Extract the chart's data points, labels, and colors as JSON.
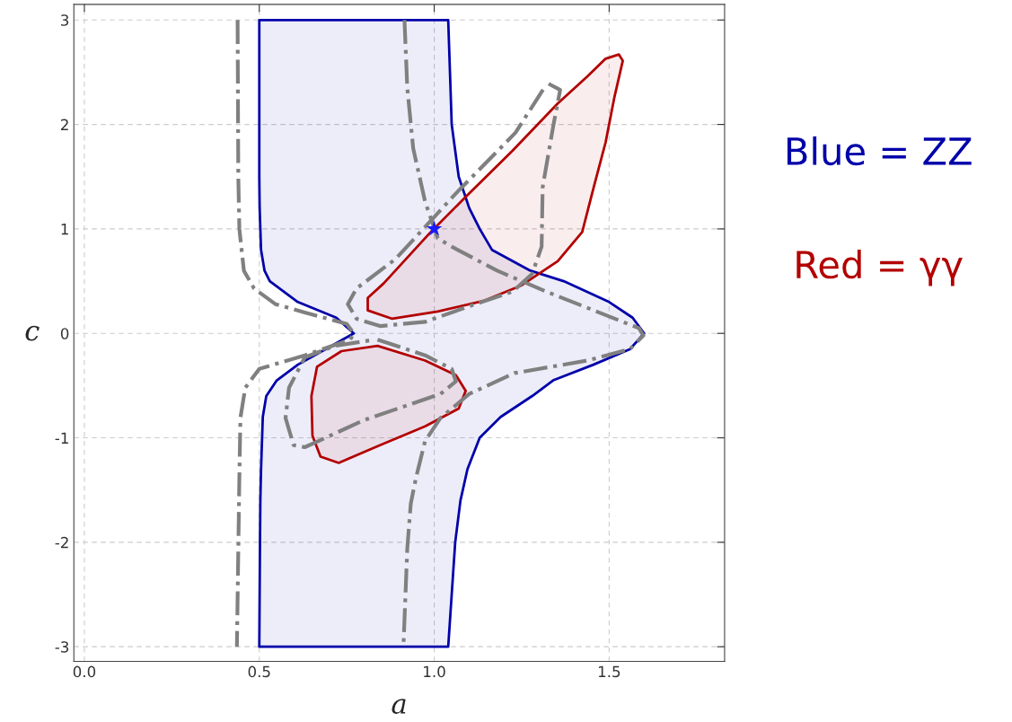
{
  "chart_data": {
    "type": "line",
    "xlabel": "a",
    "ylabel": "c",
    "xlim": [
      -0.03,
      1.83
    ],
    "ylim": [
      -3.14,
      3.15
    ],
    "xticks": [
      {
        "value": 0,
        "label": "0.0"
      },
      {
        "value": 0.5,
        "label": "0.5"
      },
      {
        "value": 1,
        "label": "1.0"
      },
      {
        "value": 1.5,
        "label": "1.5"
      }
    ],
    "yticks": [
      -3,
      -2,
      -1,
      0,
      1,
      2,
      3
    ],
    "grid": true,
    "annotations": [
      "Blue = ZZ",
      "Red = γγ"
    ],
    "series": [
      {
        "type": "area",
        "color": "#0000aa",
        "x": [
          0.5,
          0.5,
          0.5,
          0.501,
          0.503,
          0.505,
          0.515,
          0.53,
          0.61,
          0.72,
          0.77,
          0.69,
          0.61,
          0.55,
          0.52,
          0.51,
          0.508,
          0.505,
          0.503,
          0.502,
          0.5,
          1.04,
          1.06,
          1.075,
          1.095,
          1.13,
          1.19,
          1.28,
          1.34,
          1.455,
          1.56,
          1.6,
          1.567,
          1.5,
          1.37,
          1.275,
          1.165,
          1.13,
          1.1,
          1.07,
          1.05,
          1.04
        ],
        "values": [
          3,
          2,
          1.5,
          1.2,
          1,
          0.8,
          0.6,
          0.5,
          0.3,
          0.15,
          0,
          -0.15,
          -0.3,
          -0.45,
          -0.6,
          -0.8,
          -1,
          -1.3,
          -1.6,
          -2,
          -3,
          -3,
          -2,
          -1.6,
          -1.3,
          -1,
          -0.8,
          -0.6,
          -0.45,
          -0.3,
          -0.15,
          0,
          0.15,
          0.3,
          0.5,
          0.6,
          0.8,
          1,
          1.2,
          1.5,
          2,
          3
        ]
      },
      {
        "type": "area",
        "color": "#b30000",
        "x": [
          1.528,
          1.539,
          1.515,
          1.49,
          1.456,
          1.423,
          1.353,
          1.25,
          1.14,
          1.01,
          0.88,
          0.81,
          0.81,
          0.856,
          0.99,
          1.088,
          1.224,
          1.353,
          1.438,
          1.49
        ],
        "values": [
          2.67,
          2.61,
          2.26,
          1.83,
          1.4,
          0.97,
          0.69,
          0.46,
          0.31,
          0.21,
          0.14,
          0.22,
          0.34,
          0.48,
          0.97,
          1.3,
          1.75,
          2.2,
          2.46,
          2.63
        ]
      },
      {
        "type": "area",
        "color": "#b30000",
        "x": [
          0.838,
          0.974,
          1.062,
          1.09,
          1.07,
          0.974,
          0.845,
          0.727,
          0.675,
          0.652,
          0.649,
          0.665,
          0.735
        ],
        "values": [
          -0.12,
          -0.26,
          -0.4,
          -0.55,
          -0.72,
          -0.89,
          -1.07,
          -1.24,
          -1.18,
          -0.98,
          -0.6,
          -0.32,
          -0.17
        ]
      },
      {
        "color": "#808080",
        "line_style": "dashdot",
        "x": [
          0.438,
          0.44,
          0.443,
          0.456,
          0.485,
          0.546,
          0.63,
          0.75,
          0.77,
          0.76,
          0.63,
          0.5,
          0.46,
          0.446,
          0.443,
          0.436
        ],
        "values": [
          3,
          1.5,
          1,
          0.6,
          0.43,
          0.28,
          0.2,
          0.09,
          0,
          -0.06,
          -0.21,
          -0.34,
          -0.52,
          -0.81,
          -1.38,
          -3
        ]
      },
      {
        "color": "#808080",
        "line_style": "dashdot",
        "x": [
          0.915,
          0.923,
          0.94,
          0.974,
          1.01,
          1.05,
          1.18,
          1.32,
          1.456,
          1.585,
          1.598,
          1.56,
          1.438,
          1.23,
          1.1,
          1.018,
          0.974,
          0.948,
          0.933,
          0.923,
          0.912
        ],
        "values": [
          3,
          2.35,
          1.77,
          1.26,
          0.91,
          0.83,
          0.6,
          0.4,
          0.22,
          0.05,
          -0.02,
          -0.15,
          -0.26,
          -0.38,
          -0.58,
          -0.81,
          -1.03,
          -1.38,
          -1.63,
          -2.06,
          -3
        ]
      },
      {
        "color": "#808080",
        "line_style": "dashdot",
        "x": [
          1.327,
          1.36,
          1.34,
          1.31,
          1.307,
          1.28,
          1.224,
          1.1,
          0.974,
          0.845,
          0.778,
          0.753,
          0.778,
          0.889,
          1.062,
          1.232,
          1.32
        ],
        "values": [
          2.39,
          2.33,
          1.98,
          1.4,
          0.83,
          0.57,
          0.4,
          0.26,
          0.11,
          0.07,
          0.14,
          0.28,
          0.43,
          0.71,
          1.34,
          1.92,
          2.38
        ]
      },
      {
        "color": "#808080",
        "line_style": "dashdot",
        "x": [
          0.838,
          0.974,
          1.05,
          1.062,
          1.018,
          0.8,
          0.63,
          0.598,
          0.575,
          0.585,
          0.63,
          0.716,
          0.83
        ],
        "values": [
          -0.06,
          -0.21,
          -0.34,
          -0.46,
          -0.58,
          -0.83,
          -1.09,
          -1.07,
          -0.81,
          -0.52,
          -0.23,
          -0.12,
          -0.06
        ]
      },
      {
        "type": "scatter",
        "color": "#1a1aff",
        "marker": "star",
        "x": [
          1
        ],
        "values": [
          1
        ]
      }
    ]
  }
}
